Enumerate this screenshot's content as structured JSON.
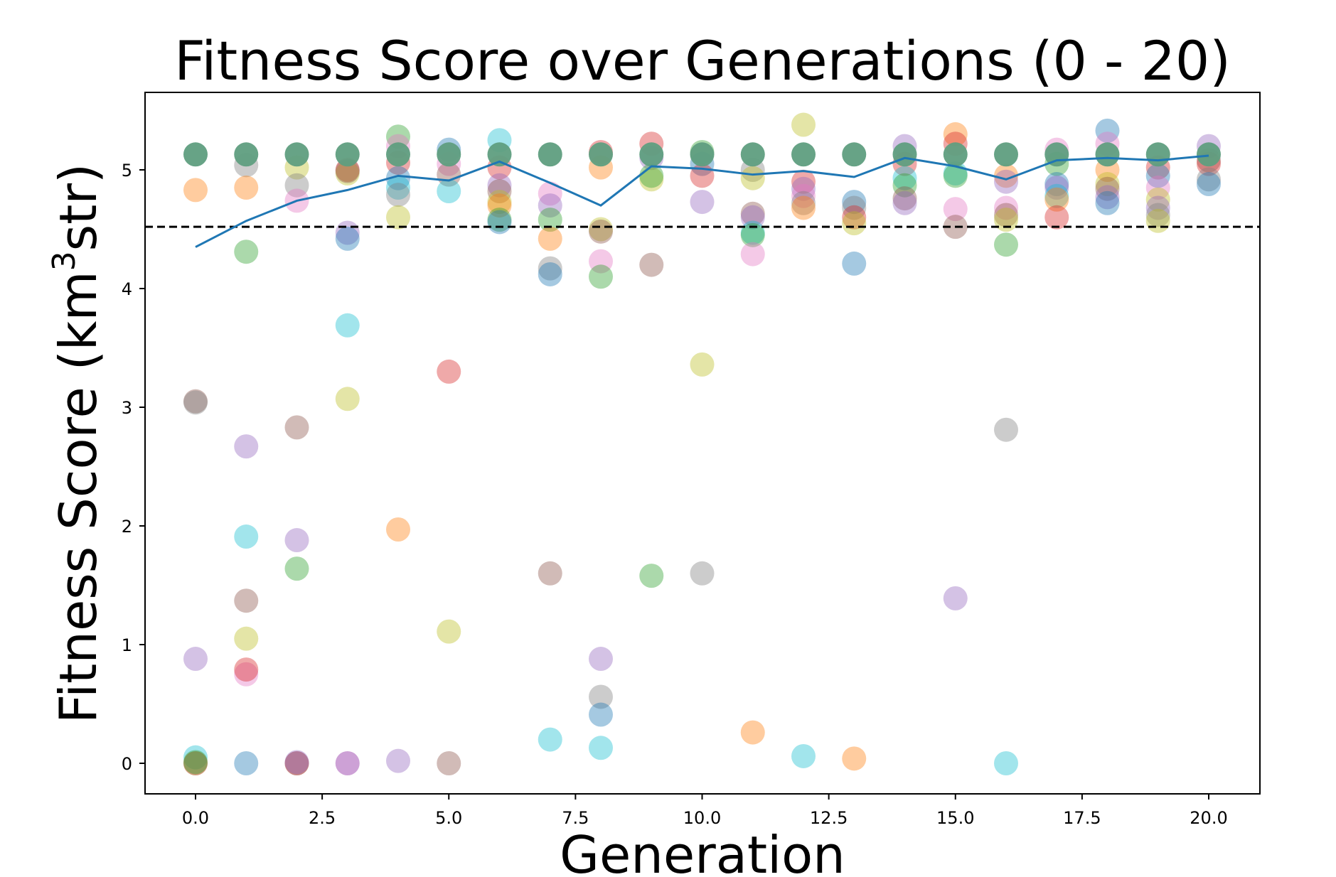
{
  "chart_data": {
    "type": "scatter",
    "title": "Fitness Score over Generations (0 - 20)",
    "xlabel": "Generation",
    "ylabel_main": "Fitness Score (km",
    "ylabel_sup": "3",
    "ylabel_tail": "str)",
    "xlim": [
      -1,
      21
    ],
    "ylim": [
      -0.27,
      5.6
    ],
    "xticks": [
      0,
      2.5,
      5,
      7.5,
      10,
      12.5,
      15,
      17.5,
      20
    ],
    "xtick_labels": [
      "0.0",
      "2.5",
      "5.0",
      "7.5",
      "10.0",
      "12.5",
      "15.0",
      "17.5",
      "20.0"
    ],
    "yticks": [
      0,
      1,
      2,
      3,
      4,
      5
    ],
    "ytick_labels": [
      "0",
      "1",
      "2",
      "3",
      "4",
      "5"
    ],
    "threshold": 4.52,
    "colors": {
      "blue": "#1f77b4",
      "orange": "#ff7f0e",
      "green": "#2ca02c",
      "red": "#d62728",
      "purple": "#9467bd",
      "brown": "#8c564b",
      "pink": "#e377c2",
      "gray": "#7f7f7f",
      "olive": "#bcbd22",
      "cyan": "#17becf",
      "best": "#5f9e80",
      "line": "#1f77b4"
    },
    "mean_line": {
      "x": [
        0,
        1,
        2,
        3,
        4,
        5,
        6,
        7,
        8,
        9,
        10,
        11,
        12,
        13,
        14,
        15,
        16,
        17,
        18,
        19,
        20
      ],
      "y": [
        4.35,
        4.57,
        4.74,
        4.83,
        4.95,
        4.91,
        5.07,
        4.89,
        4.7,
        5.03,
        5.01,
        4.96,
        4.99,
        4.94,
        5.1,
        5.03,
        4.92,
        5.08,
        5.1,
        5.08,
        5.12
      ]
    },
    "best_value": 5.13,
    "points": [
      [
        0,
        4.83,
        "orange"
      ],
      [
        0,
        3.05,
        "brown"
      ],
      [
        0,
        3.04,
        "gray"
      ],
      [
        0,
        0.88,
        "purple"
      ],
      [
        0,
        0.05,
        "cyan"
      ],
      [
        0,
        0,
        "orange"
      ],
      [
        0,
        0,
        "brown"
      ],
      [
        0,
        0.01,
        "green"
      ],
      [
        1,
        5.04,
        "gray"
      ],
      [
        1,
        4.85,
        "orange"
      ],
      [
        1,
        4.31,
        "green"
      ],
      [
        1,
        2.67,
        "purple"
      ],
      [
        1,
        1.91,
        "cyan"
      ],
      [
        1,
        1.37,
        "brown"
      ],
      [
        1,
        1.05,
        "olive"
      ],
      [
        1,
        0.75,
        "pink"
      ],
      [
        1,
        0.79,
        "red"
      ],
      [
        1,
        0,
        "blue"
      ],
      [
        2,
        5.02,
        "olive"
      ],
      [
        2,
        4.87,
        "gray"
      ],
      [
        2,
        4.74,
        "pink"
      ],
      [
        2,
        2.83,
        "brown"
      ],
      [
        2,
        1.88,
        "purple"
      ],
      [
        2,
        1.64,
        "green"
      ],
      [
        2,
        0,
        "red"
      ],
      [
        2,
        0,
        "brown"
      ],
      [
        2,
        0.01,
        "purple"
      ],
      [
        3,
        5.0,
        "red"
      ],
      [
        3,
        4.97,
        "olive"
      ],
      [
        3,
        4.99,
        "brown"
      ],
      [
        3,
        4.47,
        "purple"
      ],
      [
        3,
        4.42,
        "blue"
      ],
      [
        3,
        3.69,
        "cyan"
      ],
      [
        3,
        3.07,
        "olive"
      ],
      [
        3,
        0,
        "pink"
      ],
      [
        3,
        0,
        "purple"
      ],
      [
        4,
        5.28,
        "green"
      ],
      [
        4,
        5.2,
        "pink"
      ],
      [
        4,
        5.06,
        "red"
      ],
      [
        4,
        4.93,
        "blue"
      ],
      [
        4,
        4.85,
        "cyan"
      ],
      [
        4,
        4.79,
        "gray"
      ],
      [
        4,
        4.6,
        "olive"
      ],
      [
        4,
        1.97,
        "orange"
      ],
      [
        4,
        0.02,
        "purple"
      ],
      [
        5,
        5.17,
        "blue"
      ],
      [
        5,
        5.05,
        "pink"
      ],
      [
        5,
        4.96,
        "brown"
      ],
      [
        5,
        4.82,
        "cyan"
      ],
      [
        5,
        3.3,
        "red"
      ],
      [
        5,
        1.11,
        "olive"
      ],
      [
        5,
        0,
        "brown"
      ],
      [
        6,
        5.25,
        "cyan"
      ],
      [
        6,
        5.02,
        "red"
      ],
      [
        6,
        4.87,
        "purple"
      ],
      [
        6,
        4.82,
        "brown"
      ],
      [
        6,
        4.73,
        "olive"
      ],
      [
        6,
        4.7,
        "orange"
      ],
      [
        6,
        4.58,
        "green"
      ],
      [
        6,
        4.56,
        "blue"
      ],
      [
        7,
        4.8,
        "pink"
      ],
      [
        7,
        4.7,
        "purple"
      ],
      [
        7,
        4.58,
        "green"
      ],
      [
        7,
        4.42,
        "orange"
      ],
      [
        7,
        4.17,
        "gray"
      ],
      [
        7,
        4.12,
        "blue"
      ],
      [
        7,
        1.6,
        "brown"
      ],
      [
        7,
        0.2,
        "cyan"
      ],
      [
        8,
        5.15,
        "red"
      ],
      [
        8,
        5.02,
        "orange"
      ],
      [
        8,
        4.5,
        "olive"
      ],
      [
        8,
        4.48,
        "brown"
      ],
      [
        8,
        4.23,
        "pink"
      ],
      [
        8,
        4.1,
        "green"
      ],
      [
        8,
        0.88,
        "purple"
      ],
      [
        8,
        0.56,
        "gray"
      ],
      [
        8,
        0.41,
        "blue"
      ],
      [
        8,
        0.13,
        "cyan"
      ],
      [
        9,
        5.22,
        "red"
      ],
      [
        9,
        5.1,
        "purple"
      ],
      [
        9,
        4.92,
        "olive"
      ],
      [
        9,
        4.95,
        "green"
      ],
      [
        9,
        4.2,
        "brown"
      ],
      [
        9,
        1.58,
        "green"
      ],
      [
        10,
        5.15,
        "green"
      ],
      [
        10,
        5.05,
        "blue"
      ],
      [
        10,
        4.95,
        "red"
      ],
      [
        10,
        4.73,
        "purple"
      ],
      [
        10,
        3.36,
        "olive"
      ],
      [
        10,
        1.6,
        "gray"
      ],
      [
        11,
        5.0,
        "gray"
      ],
      [
        11,
        4.93,
        "olive"
      ],
      [
        11,
        4.63,
        "brown"
      ],
      [
        11,
        4.6,
        "purple"
      ],
      [
        11,
        4.47,
        "cyan"
      ],
      [
        11,
        4.45,
        "green"
      ],
      [
        11,
        4.29,
        "pink"
      ],
      [
        11,
        0.26,
        "orange"
      ],
      [
        12,
        5.38,
        "olive"
      ],
      [
        12,
        4.9,
        "red"
      ],
      [
        12,
        4.84,
        "purple"
      ],
      [
        12,
        4.78,
        "pink"
      ],
      [
        12,
        4.72,
        "gray"
      ],
      [
        12,
        4.68,
        "orange"
      ],
      [
        12,
        0.06,
        "cyan"
      ],
      [
        13,
        4.73,
        "blue"
      ],
      [
        13,
        4.68,
        "gray"
      ],
      [
        13,
        4.6,
        "red"
      ],
      [
        13,
        4.55,
        "olive"
      ],
      [
        13,
        4.21,
        "blue"
      ],
      [
        13,
        0.04,
        "orange"
      ],
      [
        14,
        5.2,
        "purple"
      ],
      [
        14,
        5.05,
        "red"
      ],
      [
        14,
        4.93,
        "cyan"
      ],
      [
        14,
        4.87,
        "green"
      ],
      [
        14,
        4.76,
        "brown"
      ],
      [
        14,
        4.72,
        "purple"
      ],
      [
        15,
        5.3,
        "orange"
      ],
      [
        15,
        5.22,
        "red"
      ],
      [
        15,
        4.97,
        "cyan"
      ],
      [
        15,
        4.95,
        "green"
      ],
      [
        15,
        4.67,
        "pink"
      ],
      [
        15,
        4.52,
        "brown"
      ],
      [
        15,
        1.39,
        "purple"
      ],
      [
        16,
        4.95,
        "orange"
      ],
      [
        16,
        4.9,
        "purple"
      ],
      [
        16,
        4.68,
        "pink"
      ],
      [
        16,
        4.62,
        "brown"
      ],
      [
        16,
        4.58,
        "olive"
      ],
      [
        16,
        4.37,
        "green"
      ],
      [
        16,
        2.81,
        "gray"
      ],
      [
        16,
        0,
        "cyan"
      ],
      [
        17,
        5.17,
        "pink"
      ],
      [
        17,
        5.05,
        "green"
      ],
      [
        17,
        4.88,
        "blue"
      ],
      [
        17,
        4.85,
        "purple"
      ],
      [
        17,
        4.78,
        "cyan"
      ],
      [
        17,
        4.75,
        "orange"
      ],
      [
        17,
        4.6,
        "red"
      ],
      [
        18,
        5.33,
        "blue"
      ],
      [
        18,
        5.22,
        "pink"
      ],
      [
        18,
        5.0,
        "orange"
      ],
      [
        18,
        4.88,
        "olive"
      ],
      [
        18,
        4.84,
        "brown"
      ],
      [
        18,
        4.77,
        "purple"
      ],
      [
        18,
        4.72,
        "blue"
      ],
      [
        19,
        5.02,
        "red"
      ],
      [
        19,
        4.95,
        "blue"
      ],
      [
        19,
        4.85,
        "pink"
      ],
      [
        19,
        4.75,
        "olive"
      ],
      [
        19,
        4.68,
        "purple"
      ],
      [
        19,
        4.62,
        "gray"
      ],
      [
        19,
        4.57,
        "olive"
      ],
      [
        20,
        5.2,
        "purple"
      ],
      [
        20,
        5.08,
        "brown"
      ],
      [
        20,
        5.05,
        "red"
      ],
      [
        20,
        4.92,
        "gray"
      ],
      [
        20,
        4.88,
        "blue"
      ]
    ]
  }
}
